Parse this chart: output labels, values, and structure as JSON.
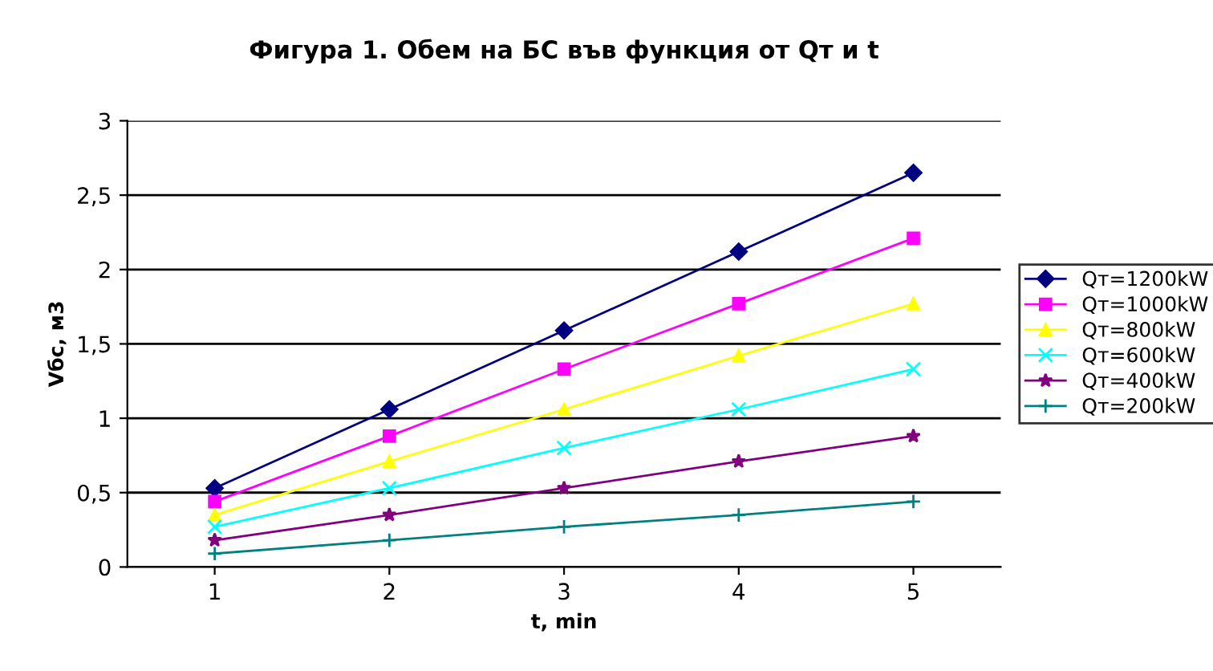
{
  "chart_data": {
    "type": "line",
    "title": "Фигура 1. Обем на БС във функция от Qт и t",
    "xlabel": "t, min",
    "ylabel": "Vбс, м3",
    "categories": [
      "1",
      "2",
      "3",
      "4",
      "5"
    ],
    "ylim": [
      0,
      3
    ],
    "yticks": [
      0,
      {
        "value": 0.5,
        "label": "0,5"
      },
      1,
      {
        "value": 1.5,
        "label": "1,5"
      },
      2,
      {
        "value": 2.5,
        "label": "2,5"
      },
      3
    ],
    "grid": "y",
    "legend": "right",
    "series": [
      {
        "name": "Qт=1200kW",
        "color": "#000080",
        "marker": "diamond",
        "values": [
          0.53,
          1.06,
          1.59,
          2.12,
          2.65
        ]
      },
      {
        "name": "Qт=1000kW",
        "color": "#ff00ff",
        "marker": "square",
        "values": [
          0.44,
          0.88,
          1.33,
          1.77,
          2.21
        ]
      },
      {
        "name": "Qт=800kW",
        "color": "#ffff00",
        "marker": "triangle",
        "values": [
          0.35,
          0.71,
          1.06,
          1.42,
          1.77
        ]
      },
      {
        "name": "Qт=600kW",
        "color": "#00ffff",
        "marker": "cross",
        "values": [
          0.27,
          0.53,
          0.8,
          1.06,
          1.33
        ]
      },
      {
        "name": "Qт=400kW",
        "color": "#800080",
        "marker": "star",
        "values": [
          0.18,
          0.35,
          0.53,
          0.71,
          0.88
        ]
      },
      {
        "name": "Qт=200kW",
        "color": "#008080",
        "marker": "plus",
        "values": [
          0.09,
          0.18,
          0.27,
          0.35,
          0.44
        ]
      }
    ]
  }
}
